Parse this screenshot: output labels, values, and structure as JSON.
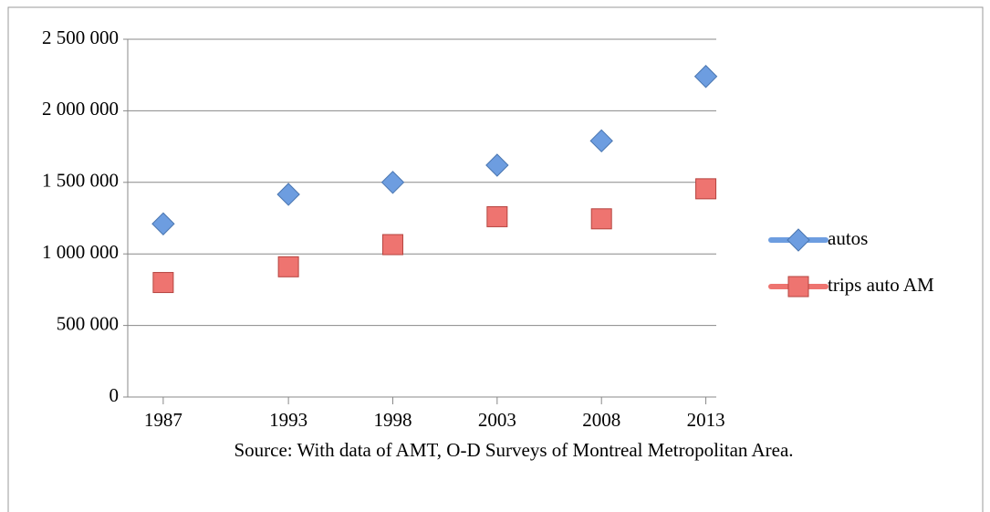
{
  "chart_data": {
    "type": "scatter",
    "x": [
      1987,
      1993,
      1998,
      2003,
      2008,
      2013
    ],
    "series": [
      {
        "name": "autos",
        "color": "#6d9de0",
        "marker": "diamond",
        "values": [
          1210000,
          1416000,
          1500000,
          1620000,
          1790000,
          2240000
        ]
      },
      {
        "name": "trips auto AM",
        "color": "#ee7470",
        "marker": "square",
        "values": [
          800000,
          910000,
          1065000,
          1260000,
          1245000,
          1455000
        ]
      }
    ],
    "xlim": [
      1985.3,
      2013.5
    ],
    "xticks": [
      1987,
      1993,
      1998,
      2003,
      2008,
      2013
    ],
    "ylim": [
      0,
      2500000
    ],
    "yticks": [
      0,
      {
        "value": 500000,
        "label": "500 000"
      },
      {
        "value": 1000000,
        "label": "1 000 000"
      },
      {
        "value": 1500000,
        "label": "1 500 000"
      },
      {
        "value": 2000000,
        "label": "2 000 000"
      },
      {
        "value": 2500000,
        "label": "2 500 000"
      }
    ],
    "grid": true,
    "legend": "right",
    "source": "Source: With data of AMT, O-D Surveys of Montreal Metropolitan Area."
  }
}
